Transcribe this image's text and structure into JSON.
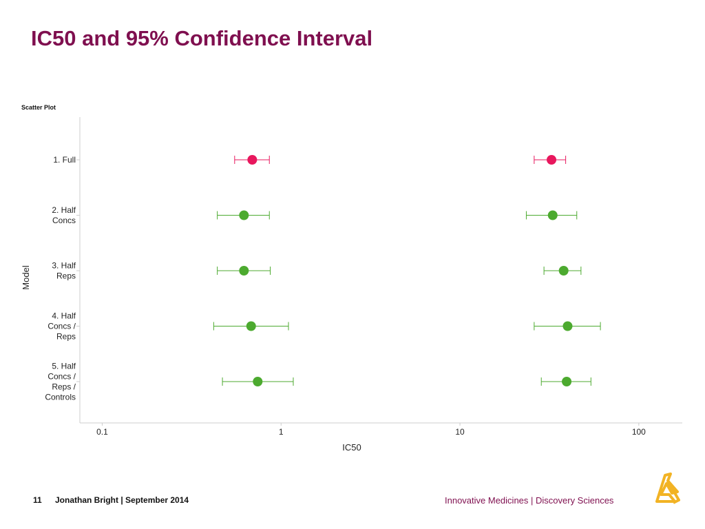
{
  "slide": {
    "title": "IC50 and 95% Confidence Interval",
    "plot_label": "Scatter Plot"
  },
  "footer": {
    "page_number": "11",
    "author_date": "Jonathan Bright | September 2014",
    "tagline": "Innovative Medicines | Discovery Sciences"
  },
  "colors": {
    "title": "#7f0f4f",
    "highlight_series": "#e8175d",
    "other_series": "#4caa2f",
    "axis": "#cccccc",
    "logo": "#f2b324"
  },
  "logo_icon": "company-logo-icon",
  "chart_data": {
    "type": "scatter",
    "title": "",
    "xlabel": "IC50",
    "ylabel": "Model",
    "xscale": "log",
    "xlim": [
      0.075,
      175
    ],
    "xticks": [
      {
        "value": 0.1,
        "label": "0.1"
      },
      {
        "value": 1,
        "label": "1"
      },
      {
        "value": 10,
        "label": "10"
      },
      {
        "value": 100,
        "label": "100"
      }
    ],
    "grid": false,
    "legend": "none",
    "categories": [
      [
        "1. Full"
      ],
      [
        "2. Half",
        "Concs"
      ],
      [
        "3. Half",
        "Reps"
      ],
      [
        "4. Half",
        "Concs /",
        "Reps"
      ],
      [
        "5. Half",
        "Concs /",
        "Reps /",
        "Controls"
      ]
    ],
    "points": [
      {
        "category": 0,
        "ic50": 0.69,
        "ci": [
          0.55,
          0.86
        ],
        "color": "#e8175d"
      },
      {
        "category": 0,
        "ic50": 32.5,
        "ci": [
          26.0,
          39.0
        ],
        "color": "#e8175d"
      },
      {
        "category": 1,
        "ic50": 0.62,
        "ci": [
          0.44,
          0.86
        ],
        "color": "#4caa2f"
      },
      {
        "category": 1,
        "ic50": 33.0,
        "ci": [
          23.5,
          45.0
        ],
        "color": "#4caa2f"
      },
      {
        "category": 2,
        "ic50": 0.62,
        "ci": [
          0.44,
          0.87
        ],
        "color": "#4caa2f"
      },
      {
        "category": 2,
        "ic50": 38.0,
        "ci": [
          29.5,
          47.5
        ],
        "color": "#4caa2f"
      },
      {
        "category": 3,
        "ic50": 0.68,
        "ci": [
          0.42,
          1.1
        ],
        "color": "#4caa2f"
      },
      {
        "category": 3,
        "ic50": 40.0,
        "ci": [
          26.0,
          61.0
        ],
        "color": "#4caa2f"
      },
      {
        "category": 4,
        "ic50": 0.74,
        "ci": [
          0.47,
          1.17
        ],
        "color": "#4caa2f"
      },
      {
        "category": 4,
        "ic50": 39.5,
        "ci": [
          28.5,
          54.0
        ],
        "color": "#4caa2f"
      }
    ]
  }
}
